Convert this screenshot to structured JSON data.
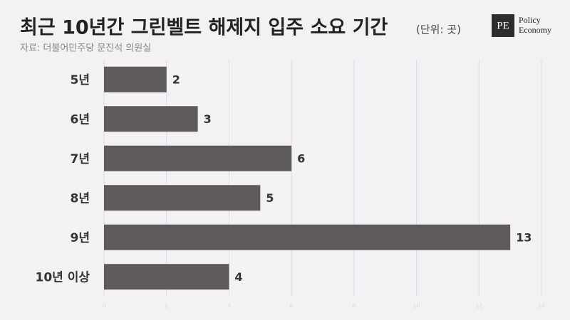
{
  "chart_data": {
    "type": "bar",
    "orientation": "horizontal",
    "title": "최근 10년간 그린벨트 해제지 입주 소요 기간",
    "unit": "(단위: 곳)",
    "source": "자료: 더불어민주당 문진석 의원실",
    "categories": [
      "5년",
      "6년",
      "7년",
      "8년",
      "9년",
      "10년 이상"
    ],
    "values": [
      2,
      3,
      6,
      5,
      13,
      4
    ],
    "color": "#5e5a5b",
    "xlim": [
      0,
      14
    ],
    "xticks": [
      0,
      2,
      4,
      6,
      8,
      10,
      12,
      14
    ],
    "grid": true
  },
  "logo": {
    "mark": "PE",
    "lines": [
      "Policy",
      "Economy"
    ]
  }
}
